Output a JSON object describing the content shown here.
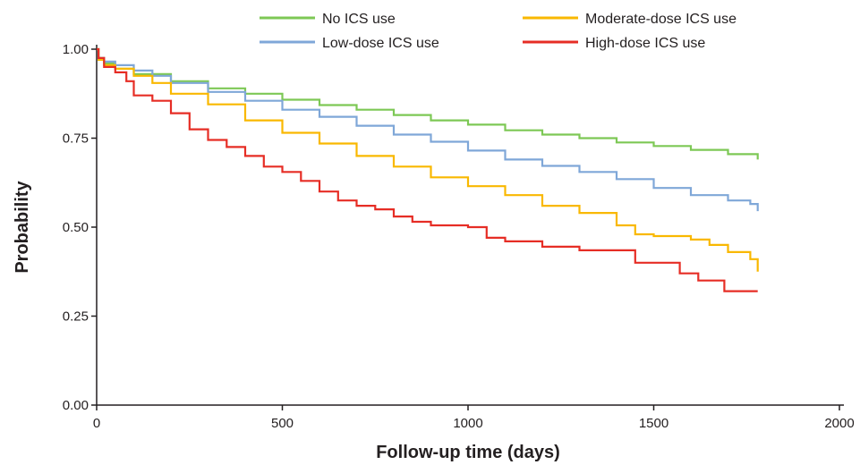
{
  "chart_data": {
    "type": "line",
    "title": "",
    "xlabel": "Follow-up time (days)",
    "ylabel": "Probability",
    "xlim": [
      0,
      2000
    ],
    "ylim": [
      0,
      1
    ],
    "x_ticks": [
      0,
      500,
      1000,
      1500,
      2000
    ],
    "x_tick_labels": [
      "0",
      "500",
      "1000",
      "1500",
      "2000"
    ],
    "y_ticks": [
      0,
      0.25,
      0.5,
      0.75,
      1
    ],
    "y_tick_labels": [
      "0.00",
      "0.25",
      "0.50",
      "0.75",
      "1.00"
    ],
    "grid": false,
    "legend_position": "top",
    "step": true,
    "series": [
      {
        "name": "No ICS use",
        "color": "#7dc855",
        "x": [
          0,
          5,
          20,
          50,
          100,
          200,
          300,
          400,
          500,
          600,
          700,
          800,
          900,
          1000,
          1100,
          1200,
          1300,
          1400,
          1500,
          1600,
          1700,
          1780
        ],
        "y": [
          1.0,
          0.975,
          0.96,
          0.945,
          0.93,
          0.91,
          0.89,
          0.875,
          0.858,
          0.843,
          0.83,
          0.815,
          0.8,
          0.788,
          0.772,
          0.76,
          0.75,
          0.738,
          0.728,
          0.717,
          0.705,
          0.69
        ]
      },
      {
        "name": "Low-dose ICS use",
        "color": "#7fa7d8",
        "x": [
          0,
          5,
          20,
          50,
          100,
          150,
          200,
          300,
          400,
          500,
          600,
          700,
          800,
          900,
          1000,
          1100,
          1200,
          1300,
          1400,
          1500,
          1600,
          1700,
          1760,
          1780
        ],
        "y": [
          1.0,
          0.975,
          0.965,
          0.955,
          0.94,
          0.925,
          0.905,
          0.88,
          0.855,
          0.83,
          0.81,
          0.785,
          0.76,
          0.74,
          0.715,
          0.69,
          0.672,
          0.655,
          0.635,
          0.61,
          0.59,
          0.575,
          0.565,
          0.545
        ]
      },
      {
        "name": "Moderate-dose ICS use",
        "color": "#f9b800",
        "x": [
          0,
          5,
          20,
          50,
          100,
          150,
          200,
          300,
          400,
          500,
          600,
          700,
          800,
          900,
          1000,
          1100,
          1200,
          1300,
          1400,
          1450,
          1500,
          1600,
          1650,
          1700,
          1760,
          1780
        ],
        "y": [
          1.0,
          0.97,
          0.955,
          0.945,
          0.925,
          0.905,
          0.875,
          0.845,
          0.8,
          0.765,
          0.735,
          0.7,
          0.67,
          0.64,
          0.615,
          0.59,
          0.56,
          0.54,
          0.505,
          0.48,
          0.475,
          0.465,
          0.45,
          0.43,
          0.41,
          0.375
        ]
      },
      {
        "name": "High-dose ICS use",
        "color": "#e62d25",
        "x": [
          0,
          5,
          20,
          50,
          80,
          100,
          150,
          200,
          250,
          300,
          350,
          400,
          450,
          500,
          550,
          600,
          650,
          700,
          750,
          800,
          850,
          900,
          1000,
          1050,
          1100,
          1200,
          1300,
          1450,
          1570,
          1620,
          1690,
          1780
        ],
        "y": [
          1.0,
          0.975,
          0.95,
          0.935,
          0.91,
          0.87,
          0.855,
          0.82,
          0.775,
          0.745,
          0.725,
          0.7,
          0.67,
          0.655,
          0.63,
          0.6,
          0.575,
          0.56,
          0.55,
          0.53,
          0.515,
          0.505,
          0.5,
          0.47,
          0.46,
          0.445,
          0.435,
          0.4,
          0.37,
          0.35,
          0.32,
          0.32
        ]
      }
    ]
  }
}
